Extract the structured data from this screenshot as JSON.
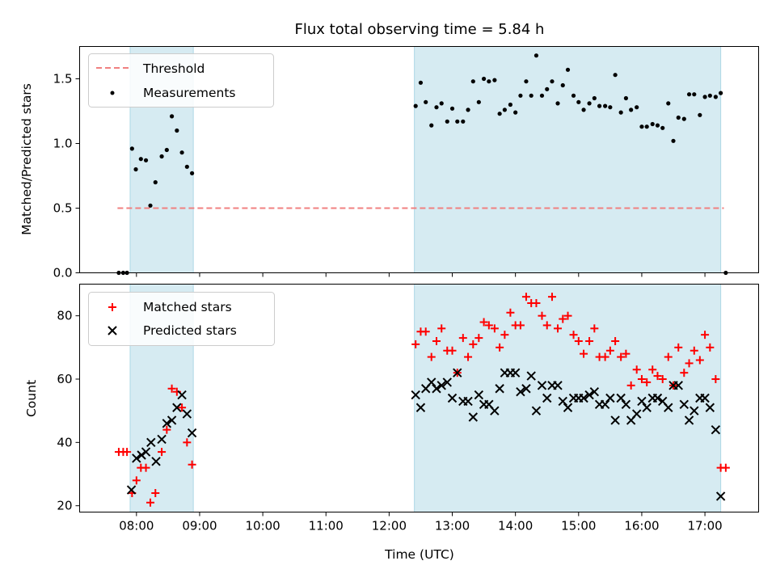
{
  "chart_data": {
    "type": "scatter",
    "title": "Flux total observing time = 5.84 h",
    "xlabel": "Time (UTC)",
    "x_units": "hours UTC",
    "x_range": [
      7.1,
      17.85
    ],
    "x_ticks": [
      8,
      9,
      10,
      11,
      12,
      13,
      14,
      15,
      16,
      17
    ],
    "x_tick_labels": [
      "08:00",
      "09:00",
      "10:00",
      "11:00",
      "12:00",
      "13:00",
      "14:00",
      "15:00",
      "16:00",
      "17:00"
    ],
    "shaded_intervals": [
      [
        7.9,
        8.9
      ],
      [
        12.4,
        17.25
      ]
    ],
    "shade_color": "#add8e6",
    "panels": [
      {
        "ylabel": "Matched/Predicted stars",
        "ylim": [
          0,
          1.75
        ],
        "y_ticks": [
          0.0,
          0.5,
          1.0,
          1.5
        ],
        "y_tick_labels": [
          "0.0",
          "0.5",
          "1.0",
          "1.5"
        ],
        "legend": {
          "location": "upper left",
          "entries": [
            "Threshold",
            "Measurements"
          ]
        },
        "threshold": {
          "name": "Threshold",
          "value": 0.5,
          "x_start": 7.7,
          "x_end": 17.3,
          "color": "#f08080",
          "style": "dashed"
        },
        "series": [
          {
            "name": "Measurements",
            "marker": "dot",
            "color": "#000000",
            "points": [
              [
                7.72,
                0.0
              ],
              [
                7.79,
                0.0
              ],
              [
                7.85,
                0.0
              ],
              [
                7.93,
                0.96
              ],
              [
                7.99,
                0.8
              ],
              [
                8.07,
                0.88
              ],
              [
                8.15,
                0.87
              ],
              [
                8.22,
                0.52
              ],
              [
                8.3,
                0.7
              ],
              [
                8.4,
                0.9
              ],
              [
                8.48,
                0.95
              ],
              [
                8.56,
                1.21
              ],
              [
                8.64,
                1.1
              ],
              [
                8.72,
                0.93
              ],
              [
                8.8,
                0.82
              ],
              [
                8.88,
                0.77
              ],
              [
                12.42,
                1.29
              ],
              [
                12.5,
                1.47
              ],
              [
                12.58,
                1.32
              ],
              [
                12.67,
                1.14
              ],
              [
                12.75,
                1.28
              ],
              [
                12.83,
                1.31
              ],
              [
                12.92,
                1.17
              ],
              [
                13.0,
                1.27
              ],
              [
                13.08,
                1.17
              ],
              [
                13.17,
                1.17
              ],
              [
                13.25,
                1.26
              ],
              [
                13.33,
                1.48
              ],
              [
                13.42,
                1.32
              ],
              [
                13.5,
                1.5
              ],
              [
                13.58,
                1.48
              ],
              [
                13.67,
                1.49
              ],
              [
                13.75,
                1.23
              ],
              [
                13.83,
                1.26
              ],
              [
                13.92,
                1.3
              ],
              [
                14.0,
                1.24
              ],
              [
                14.08,
                1.37
              ],
              [
                14.17,
                1.48
              ],
              [
                14.25,
                1.37
              ],
              [
                14.33,
                1.68
              ],
              [
                14.42,
                1.37
              ],
              [
                14.5,
                1.42
              ],
              [
                14.58,
                1.48
              ],
              [
                14.67,
                1.31
              ],
              [
                14.75,
                1.45
              ],
              [
                14.83,
                1.57
              ],
              [
                14.92,
                1.37
              ],
              [
                15.0,
                1.32
              ],
              [
                15.08,
                1.26
              ],
              [
                15.17,
                1.31
              ],
              [
                15.25,
                1.35
              ],
              [
                15.33,
                1.29
              ],
              [
                15.42,
                1.29
              ],
              [
                15.5,
                1.28
              ],
              [
                15.58,
                1.53
              ],
              [
                15.67,
                1.24
              ],
              [
                15.75,
                1.35
              ],
              [
                15.83,
                1.26
              ],
              [
                15.92,
                1.28
              ],
              [
                16.0,
                1.13
              ],
              [
                16.08,
                1.13
              ],
              [
                16.17,
                1.15
              ],
              [
                16.25,
                1.14
              ],
              [
                16.33,
                1.12
              ],
              [
                16.42,
                1.31
              ],
              [
                16.5,
                1.02
              ],
              [
                16.58,
                1.2
              ],
              [
                16.67,
                1.19
              ],
              [
                16.75,
                1.38
              ],
              [
                16.83,
                1.38
              ],
              [
                16.92,
                1.22
              ],
              [
                17.0,
                1.36
              ],
              [
                17.08,
                1.37
              ],
              [
                17.17,
                1.36
              ],
              [
                17.25,
                1.39
              ],
              [
                17.33,
                0.0
              ]
            ]
          }
        ]
      },
      {
        "ylabel": "Count",
        "ylim": [
          18,
          90
        ],
        "y_ticks": [
          20,
          40,
          60,
          80
        ],
        "y_tick_labels": [
          "20",
          "40",
          "60",
          "80"
        ],
        "legend": {
          "location": "upper left",
          "entries": [
            "Matched stars",
            "Predicted stars"
          ]
        },
        "series": [
          {
            "name": "Matched stars",
            "marker": "plus",
            "color": "#ff0000",
            "points": [
              [
                7.72,
                37
              ],
              [
                7.79,
                37
              ],
              [
                7.85,
                37
              ],
              [
                7.93,
                24
              ],
              [
                8.0,
                28
              ],
              [
                8.07,
                32
              ],
              [
                8.15,
                32
              ],
              [
                8.22,
                21
              ],
              [
                8.3,
                24
              ],
              [
                8.4,
                37
              ],
              [
                8.48,
                44
              ],
              [
                8.56,
                57
              ],
              [
                8.64,
                56
              ],
              [
                8.72,
                51
              ],
              [
                8.8,
                40
              ],
              [
                8.88,
                33
              ],
              [
                12.42,
                71
              ],
              [
                12.5,
                75
              ],
              [
                12.58,
                75
              ],
              [
                12.67,
                67
              ],
              [
                12.75,
                72
              ],
              [
                12.83,
                76
              ],
              [
                12.92,
                69
              ],
              [
                13.0,
                69
              ],
              [
                13.08,
                62
              ],
              [
                13.17,
                73
              ],
              [
                13.25,
                67
              ],
              [
                13.33,
                71
              ],
              [
                13.42,
                73
              ],
              [
                13.5,
                78
              ],
              [
                13.58,
                77
              ],
              [
                13.67,
                76
              ],
              [
                13.75,
                70
              ],
              [
                13.83,
                74
              ],
              [
                13.92,
                81
              ],
              [
                14.0,
                77
              ],
              [
                14.08,
                77
              ],
              [
                14.17,
                86
              ],
              [
                14.25,
                84
              ],
              [
                14.33,
                84
              ],
              [
                14.42,
                80
              ],
              [
                14.5,
                77
              ],
              [
                14.58,
                86
              ],
              [
                14.67,
                76
              ],
              [
                14.75,
                79
              ],
              [
                14.83,
                80
              ],
              [
                14.92,
                74
              ],
              [
                15.0,
                72
              ],
              [
                15.08,
                68
              ],
              [
                15.17,
                72
              ],
              [
                15.25,
                76
              ],
              [
                15.33,
                67
              ],
              [
                15.42,
                67
              ],
              [
                15.5,
                69
              ],
              [
                15.58,
                72
              ],
              [
                15.67,
                67
              ],
              [
                15.75,
                68
              ],
              [
                15.83,
                58
              ],
              [
                15.92,
                63
              ],
              [
                16.0,
                60
              ],
              [
                16.08,
                59
              ],
              [
                16.17,
                63
              ],
              [
                16.25,
                61
              ],
              [
                16.33,
                60
              ],
              [
                16.42,
                67
              ],
              [
                16.5,
                58
              ],
              [
                16.58,
                70
              ],
              [
                16.67,
                62
              ],
              [
                16.75,
                65
              ],
              [
                16.83,
                69
              ],
              [
                16.92,
                66
              ],
              [
                17.0,
                74
              ],
              [
                17.08,
                70
              ],
              [
                17.17,
                60
              ],
              [
                17.25,
                32
              ],
              [
                17.33,
                32
              ]
            ]
          },
          {
            "name": "Predicted stars",
            "marker": "x",
            "color": "#000000",
            "points": [
              [
                7.92,
                25
              ],
              [
                8.0,
                35
              ],
              [
                8.08,
                36
              ],
              [
                8.15,
                37
              ],
              [
                8.23,
                40
              ],
              [
                8.31,
                34
              ],
              [
                8.4,
                41
              ],
              [
                8.48,
                46
              ],
              [
                8.56,
                47
              ],
              [
                8.64,
                51
              ],
              [
                8.72,
                55
              ],
              [
                8.8,
                49
              ],
              [
                8.88,
                43
              ],
              [
                12.42,
                55
              ],
              [
                12.5,
                51
              ],
              [
                12.58,
                57
              ],
              [
                12.67,
                59
              ],
              [
                12.75,
                57
              ],
              [
                12.83,
                58
              ],
              [
                12.92,
                59
              ],
              [
                13.0,
                54
              ],
              [
                13.08,
                62
              ],
              [
                13.17,
                53
              ],
              [
                13.25,
                53
              ],
              [
                13.33,
                48
              ],
              [
                13.42,
                55
              ],
              [
                13.5,
                52
              ],
              [
                13.58,
                52
              ],
              [
                13.67,
                50
              ],
              [
                13.75,
                57
              ],
              [
                13.83,
                62
              ],
              [
                13.92,
                62
              ],
              [
                14.0,
                62
              ],
              [
                14.08,
                56
              ],
              [
                14.17,
                57
              ],
              [
                14.25,
                61
              ],
              [
                14.33,
                50
              ],
              [
                14.42,
                58
              ],
              [
                14.5,
                54
              ],
              [
                14.58,
                58
              ],
              [
                14.67,
                58
              ],
              [
                14.75,
                53
              ],
              [
                14.83,
                51
              ],
              [
                14.92,
                54
              ],
              [
                15.0,
                54
              ],
              [
                15.08,
                54
              ],
              [
                15.17,
                55
              ],
              [
                15.25,
                56
              ],
              [
                15.33,
                52
              ],
              [
                15.42,
                52
              ],
              [
                15.5,
                54
              ],
              [
                15.58,
                47
              ],
              [
                15.67,
                54
              ],
              [
                15.75,
                52
              ],
              [
                15.83,
                47
              ],
              [
                15.92,
                49
              ],
              [
                16.0,
                53
              ],
              [
                16.08,
                51
              ],
              [
                16.17,
                54
              ],
              [
                16.25,
                54
              ],
              [
                16.33,
                53
              ],
              [
                16.42,
                51
              ],
              [
                16.5,
                58
              ],
              [
                16.58,
                58
              ],
              [
                16.67,
                52
              ],
              [
                16.75,
                47
              ],
              [
                16.83,
                50
              ],
              [
                16.92,
                54
              ],
              [
                17.0,
                54
              ],
              [
                17.08,
                51
              ],
              [
                17.17,
                44
              ],
              [
                17.25,
                23
              ]
            ]
          }
        ]
      }
    ]
  }
}
